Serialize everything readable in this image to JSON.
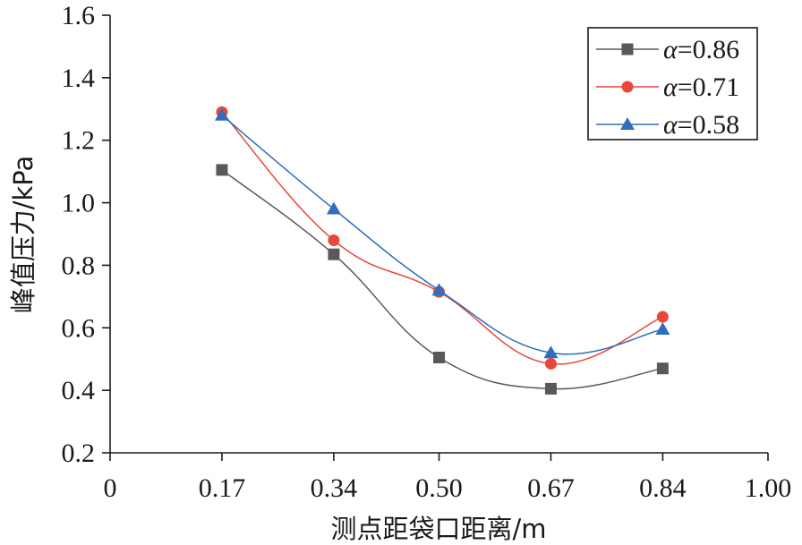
{
  "chart_data": {
    "type": "line",
    "xlabel": "测点距袋口距离/m",
    "ylabel": "峰值压力/kPa",
    "xlim": [
      0,
      1.0
    ],
    "ylim": [
      0.2,
      1.6
    ],
    "x_ticks": [
      "0",
      "0.17",
      "0.34",
      "0.50",
      "0.67",
      "0.84",
      "1.00"
    ],
    "x_tick_values": [
      0,
      0.17,
      0.34,
      0.5,
      0.67,
      0.84,
      1.0
    ],
    "y_ticks": [
      "0.2",
      "0.4",
      "0.6",
      "0.8",
      "1.0",
      "1.2",
      "1.4",
      "1.6"
    ],
    "y_tick_values": [
      0.2,
      0.4,
      0.6,
      0.8,
      1.0,
      1.2,
      1.4,
      1.6
    ],
    "grid": false,
    "legend_position": "top-right",
    "x": [
      0.17,
      0.34,
      0.5,
      0.67,
      0.84
    ],
    "series": [
      {
        "name": "α=0.86",
        "symbol": "α",
        "value_text": "=0.86",
        "marker": "square",
        "color": "#595959",
        "values": [
          1.105,
          0.835,
          0.505,
          0.405,
          0.47
        ]
      },
      {
        "name": "α=0.71",
        "symbol": "α",
        "value_text": "=0.71",
        "marker": "circle",
        "color": "#e8473a",
        "values": [
          1.29,
          0.88,
          0.715,
          0.485,
          0.635
        ]
      },
      {
        "name": "α=0.58",
        "symbol": "α",
        "value_text": "=0.58",
        "marker": "triangle",
        "color": "#2f6ebd",
        "values": [
          1.28,
          0.98,
          0.72,
          0.52,
          0.595
        ]
      }
    ]
  }
}
